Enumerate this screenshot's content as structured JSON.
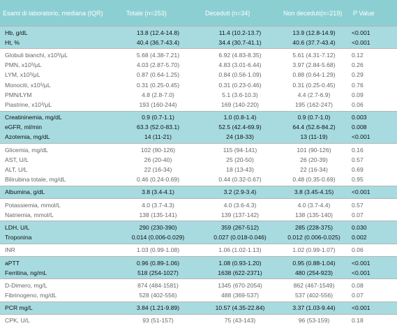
{
  "table": {
    "header": [
      "Esami di laboratorio, mediana (IQR)",
      "Totale (n=253)",
      "Deceduti (n=34)",
      "Non deceduti(n=219)",
      "P Value"
    ],
    "groups": [
      {
        "highlight": true,
        "rows": [
          [
            "Hb, g/dL",
            "13.8 (12.4-14.8)",
            "11.4 (10.2-13.7)",
            "13.9 (12.8-14.9)",
            "<0.001"
          ],
          [
            "Ht, %",
            "40.4 (36.7-43.4)",
            "34.4 (30.7-41.1)",
            "40.6 (37.7-43.4)",
            "<0.001"
          ]
        ]
      },
      {
        "highlight": false,
        "rows": [
          [
            "Globuli bianchi, x10³/μL",
            "5.68 (4.38-7.21)",
            "6.92 (4.83-8.35)",
            "5.61 (4.31-7.12)",
            "0.12"
          ],
          [
            "PMN, x10³/μL",
            "4.03 (2.87-5.70)",
            "4.83 (3.01-6.44)",
            "3.97 (2.84-5.68)",
            "0.26"
          ],
          [
            "LYM, x10³/μL",
            "0.87 (0.64-1.25)",
            "0.84 (0.56-1.09)",
            "0.88 (0.64-1.29)",
            "0.29"
          ],
          [
            "Monociti, x10³/μL",
            "0.31 (0.25-0.45)",
            "0.31 (0.23-0.46)",
            "0.31 (0.25-0.45)",
            "0.76"
          ],
          [
            "PMN/LYM",
            "4.8 (2.8-7.0)",
            "5.1 (3.6-10.3)",
            "4.4 (2.7-6.9)",
            "0.09"
          ],
          [
            "Piastrine, x10³/μL",
            "193 (160-244)",
            "169 (140-220)",
            "195 (162-247)",
            "0.06"
          ]
        ]
      },
      {
        "highlight": true,
        "rows": [
          [
            "Creatininemia, mg/dL",
            "0.9 (0.7-1.1)",
            "1.0 (0.8-1.4)",
            "0.9 (0.7-1.0)",
            "0.003"
          ],
          [
            "eGFR, ml/min",
            "63.3 (52.0-83.1)",
            "52.5 (42.4-69.9)",
            "64.4 (52.6-84.2)",
            "0.008"
          ],
          [
            "Azotemia, mg/dL",
            "14 (11-21)",
            "24 (18-33)",
            "13 (11-19)",
            "<0.001"
          ]
        ]
      },
      {
        "highlight": false,
        "rows": [
          [
            "Glicemia, mg/dL",
            "102 (90-126)",
            "115 (94-141)",
            "101 (90-126)",
            "0.16"
          ],
          [
            "AST, U/L",
            "26 (20-40)",
            "25 (20-50)",
            "26 (20-39)",
            "0.57"
          ],
          [
            "ALT, U/L",
            "22 (16-34)",
            "18 (13-43)",
            "22 (16-34)",
            "0.69"
          ],
          [
            "Bilirubina totale, mg/dL",
            "0.46 (0.24-0.69)",
            "0.44 (0.32-0.67)",
            "0.48 (0.35-0.69)",
            "0.95"
          ]
        ]
      },
      {
        "highlight": true,
        "rows": [
          [
            "Albumina, g/dL",
            "3.8 (3.4-4.1)",
            "3.2 (2.9-3.4)",
            "3.8 (3.45-4.15)",
            "<0.001"
          ]
        ]
      },
      {
        "highlight": false,
        "rows": [
          [
            "Potassiemia, mmol/L",
            "4.0 (3.7-4.3)",
            "4.0 (3.6-4.3)",
            "4.0 (3.7-4.4)",
            "0.57"
          ],
          [
            "Natriemia, mmol/L",
            "138 (135-141)",
            "139 (137-142)",
            "138 (135-140)",
            "0.07"
          ]
        ]
      },
      {
        "highlight": true,
        "rows": [
          [
            "LDH, U/L",
            "290 (230-390)",
            "359 (267-512)",
            "285 (228-375)",
            "0.030"
          ],
          [
            "Troponina",
            "0.014 (0.006-0.029)",
            "0.027 (0.018-0.046)",
            "0.012 (0.006-0.025)",
            "0.002"
          ]
        ]
      },
      {
        "highlight": false,
        "rows": [
          [
            "INR",
            "1.03 (0.99-1.08)",
            "1.06 (1.02-1.13)",
            "1.02 (0.99-1.07)",
            "0.06"
          ]
        ]
      },
      {
        "highlight": true,
        "rows": [
          [
            "aPTT",
            "0.96 (0.89-1.06)",
            "1.08 (0.93-1.20)",
            "0.95 (0.88-1.04)",
            "<0.001"
          ],
          [
            "Ferritina, ng/mL",
            "518 (254-1027)",
            "1638 (622-2371)",
            "480 (254-923)",
            "<0.001"
          ]
        ]
      },
      {
        "highlight": false,
        "rows": [
          [
            "D-Dimero, mg/L",
            "874 (484-1581)",
            "1345 (670-2054)",
            "862 (467-1549)",
            "0.08"
          ],
          [
            "Fibrinogeno, mg/dL",
            "528 (402-556)",
            "488 (369-537)",
            "537 (402-556)",
            "0.07"
          ]
        ]
      },
      {
        "highlight": true,
        "rows": [
          [
            "PCR mg/L",
            "3.84 (1.21-9.89)",
            "10.57 (4.35-22.84)",
            "3.37 (1.03-9.44)",
            "<0.001"
          ]
        ]
      },
      {
        "highlight": false,
        "rows": [
          [
            "CPK, U/L",
            "93 (51-157)",
            "75 (43-143)",
            "96 (53-159)",
            "0.18"
          ]
        ]
      }
    ]
  }
}
